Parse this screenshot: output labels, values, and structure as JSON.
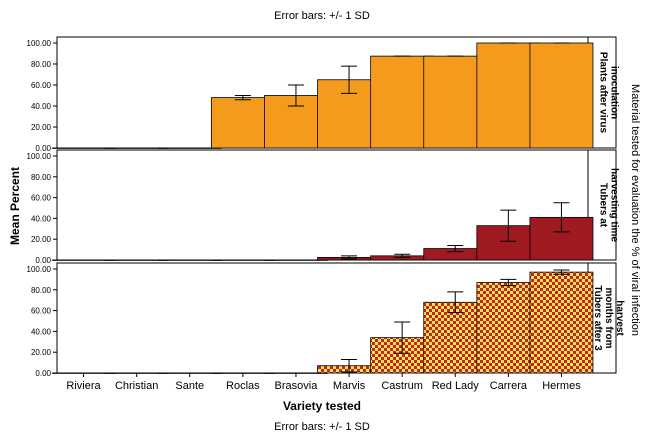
{
  "chart_data": {
    "type": "bar",
    "title": "Error bars: +/- 1 SD",
    "footnote": "Error bars: +/- 1 SD",
    "xlabel": "Variety tested",
    "ylabel": "Mean Percent",
    "right_axis_label": "Material tested for evaluation the % of viral infection",
    "categories": [
      "Riviera",
      "Christian",
      "Sante",
      "Roclas",
      "Brasovia",
      "Marvis",
      "Castrum",
      "Red Lady",
      "Carrera",
      "Hermes"
    ],
    "ylim": [
      0,
      100
    ],
    "yticks": [
      "0.00",
      "20.00",
      "40.00",
      "60.00",
      "80.00",
      "100.00"
    ],
    "grid": false,
    "panels": [
      {
        "name": "Plants after virus inoculation",
        "name_lines": [
          "Plants after virus",
          "inoculation"
        ],
        "color": "#f49b1e",
        "pattern": "solid",
        "values": [
          0,
          0,
          0,
          48,
          50,
          65,
          87.5,
          87.5,
          100,
          100
        ],
        "sd": [
          0,
          0,
          0,
          2,
          10,
          13,
          0,
          0,
          0,
          0
        ]
      },
      {
        "name": "Tubers at harvesting time",
        "name_lines": [
          "Tubers at",
          "harvesting time"
        ],
        "color": "#9e1a20",
        "pattern": "solid",
        "values": [
          0,
          0,
          0,
          0,
          0,
          2.5,
          4,
          11,
          33,
          41
        ],
        "sd": [
          0,
          0,
          0,
          0,
          0,
          1.5,
          1.5,
          3,
          15,
          14
        ]
      },
      {
        "name": "Tubers after 3 months from harvest",
        "name_lines": [
          "Tubers after 3",
          "months from",
          "harvest"
        ],
        "color": "#c0271d",
        "color2": "#f7e15a",
        "pattern": "checker",
        "values": [
          0,
          0,
          0,
          0,
          0,
          7,
          34,
          68,
          87,
          97
        ],
        "sd": [
          0,
          0,
          0,
          0,
          0,
          6,
          15,
          10,
          3,
          2
        ]
      }
    ]
  }
}
